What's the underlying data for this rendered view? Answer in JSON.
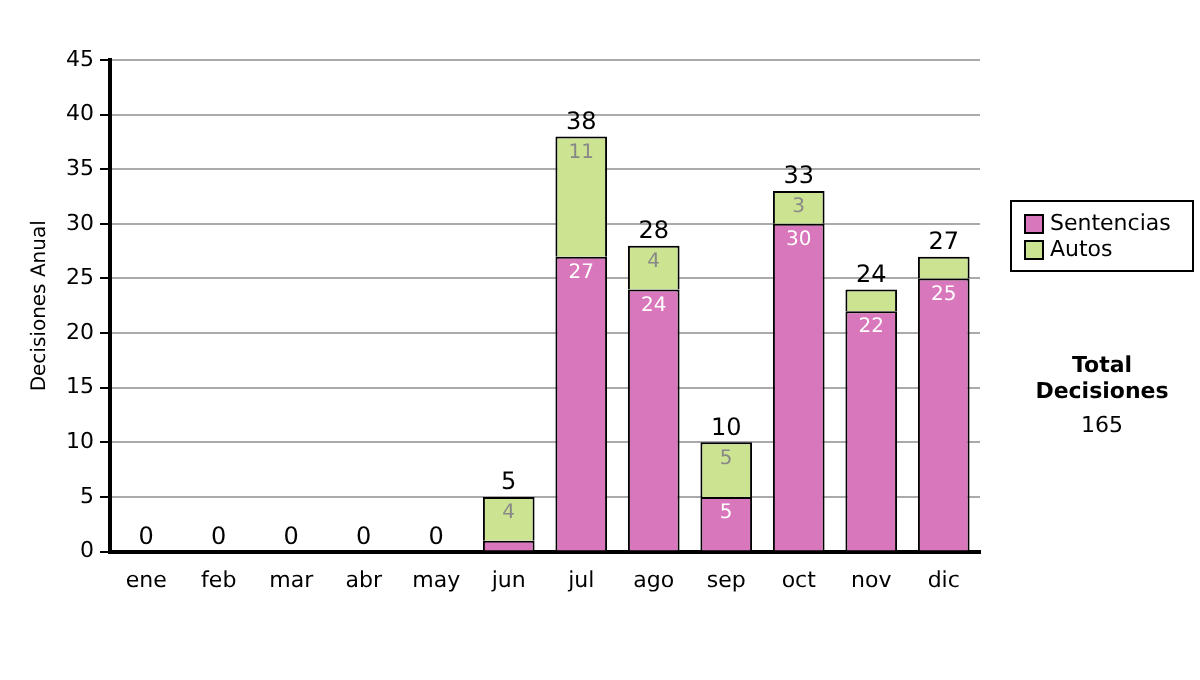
{
  "chart_data": {
    "type": "bar",
    "stacked": true,
    "ylabel": "Decisiones Anual",
    "categories": [
      "ene",
      "feb",
      "mar",
      "abr",
      "may",
      "jun",
      "jul",
      "ago",
      "sep",
      "oct",
      "nov",
      "dic"
    ],
    "series": [
      {
        "name": "Sentencias",
        "color": "#d877bb",
        "values": [
          0,
          0,
          0,
          0,
          0,
          1,
          27,
          24,
          5,
          30,
          22,
          25
        ],
        "value_labels": [
          null,
          null,
          null,
          null,
          null,
          null,
          "27",
          "24",
          "5",
          "30",
          "22",
          "25"
        ]
      },
      {
        "name": "Autos",
        "color": "#cce391",
        "values": [
          0,
          0,
          0,
          0,
          0,
          4,
          11,
          4,
          5,
          3,
          2,
          2
        ],
        "value_labels": [
          null,
          null,
          null,
          null,
          null,
          "4",
          "11",
          "4",
          "5",
          "3",
          null,
          null
        ]
      }
    ],
    "totals": [
      "0",
      "0",
      "0",
      "0",
      "0",
      "5",
      "38",
      "28",
      "10",
      "33",
      "24",
      "27"
    ],
    "ylim": [
      0,
      45
    ],
    "yticks": [
      0,
      5,
      10,
      15,
      20,
      25,
      30,
      35,
      40,
      45
    ],
    "grid": "y",
    "legend": "right",
    "annotations": [
      "Total Decisiones",
      "165"
    ]
  }
}
